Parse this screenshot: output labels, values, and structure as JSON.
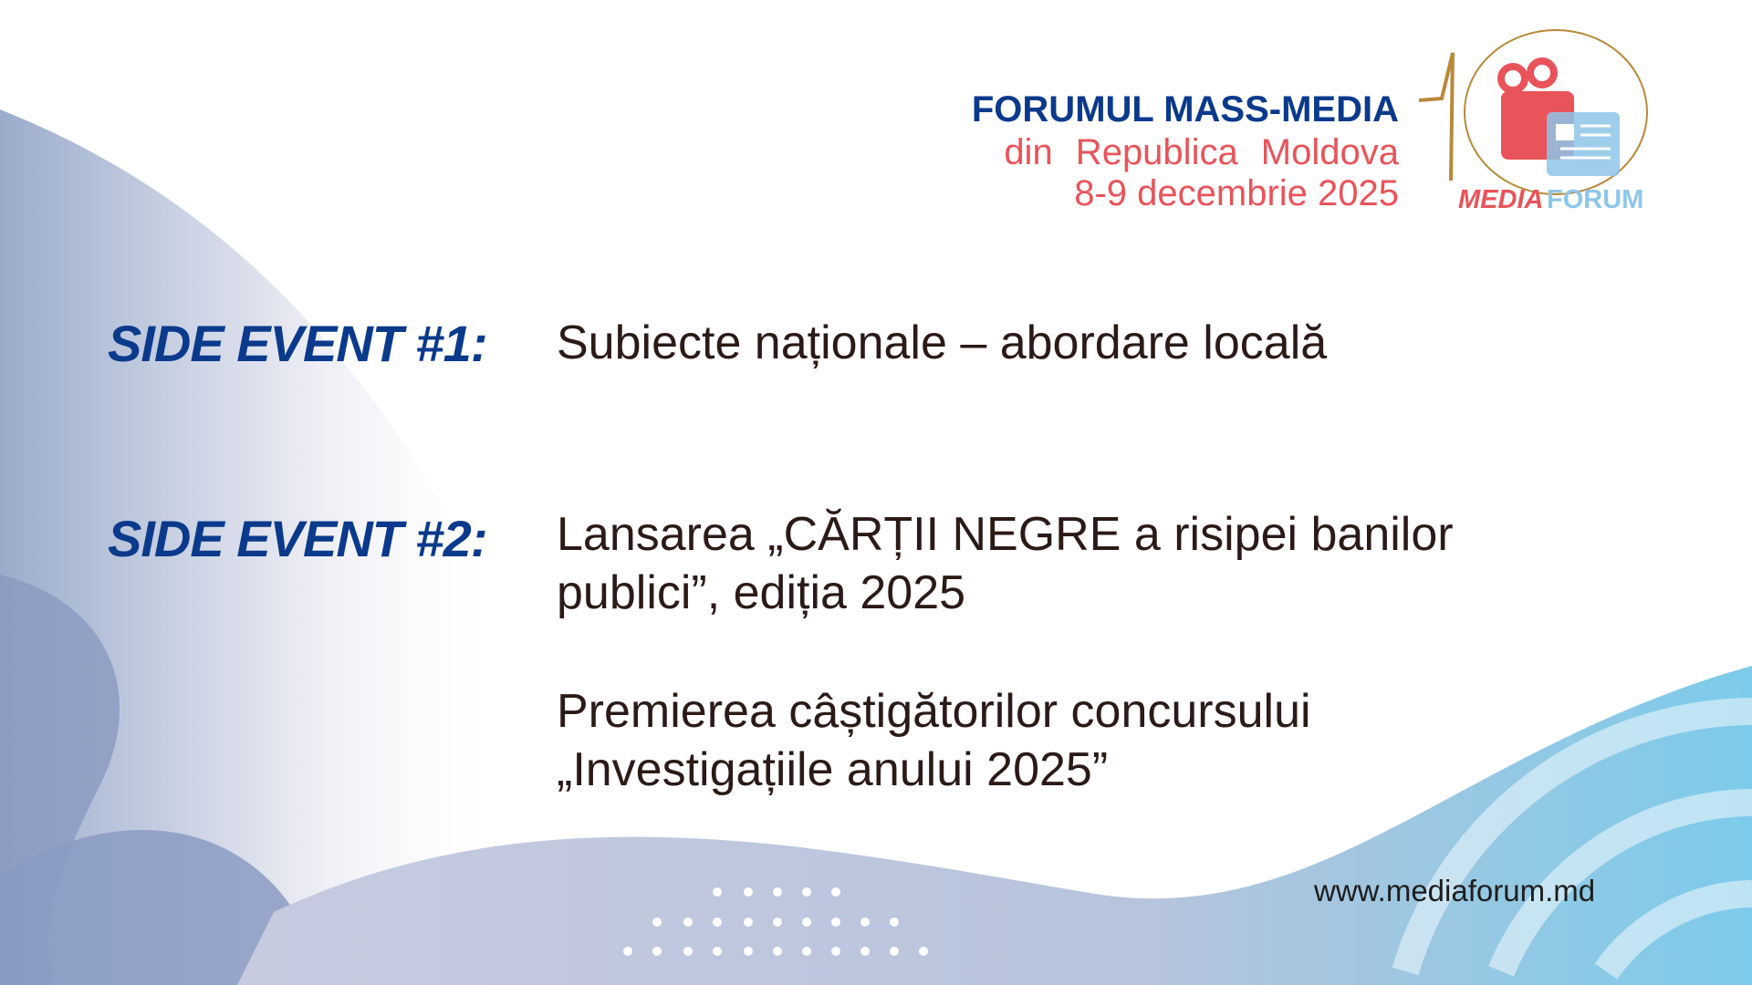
{
  "header": {
    "line1": "FORUMUL MASS-MEDIA",
    "line2": "din Republica Moldova",
    "line3": "8-9 decembrie 2025"
  },
  "logo": {
    "number": "10",
    "word1": "MEDIA",
    "word2": "FORUM",
    "icon": "camera-chat-icon"
  },
  "events": [
    {
      "label": "SIDE EVENT #1:",
      "lines": [
        "Subiecte naționale – abordare locală"
      ]
    },
    {
      "label": "SIDE EVENT #2:",
      "lines": [
        "Lansarea „CĂRȚII NEGRE a risipei banilor",
        "publici”, ediția 2025"
      ]
    }
  ],
  "extra": {
    "lines": [
      "Premierea câștigătorilor concursului",
      "„Investigațiile anului 2025”"
    ]
  },
  "footer": {
    "url": "www.mediaforum.md"
  },
  "colors": {
    "blue": "#0b3a8c",
    "red": "#e8545a",
    "gold": "#b8893a",
    "lightblue": "#8ec6ea",
    "text": "#2b1a17"
  }
}
